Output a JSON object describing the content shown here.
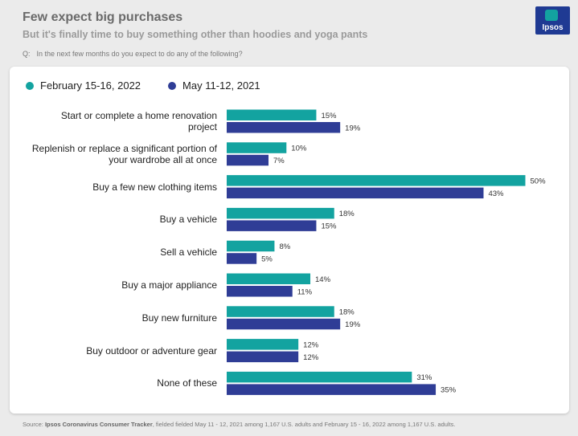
{
  "header": {
    "title": "Few expect big purchases",
    "subtitle": "But it's finally time to buy something other than hoodies and yoga pants",
    "question_label": "Q:",
    "question_text": "In the next few months do you expect to do any of the following?"
  },
  "logo": {
    "text": "Ipsos",
    "icon": "ipsos-logo-icon"
  },
  "colors": {
    "series1": "#13a3a0",
    "series2": "#2f3d96"
  },
  "chart_data": {
    "type": "bar",
    "orientation": "horizontal",
    "title": "Few expect big purchases",
    "categories": [
      "Start or complete a home renovation project",
      "Replenish or replace a significant portion of your wardrobe all at once",
      "Buy a few new clothing items",
      "Buy a vehicle",
      "Sell a vehicle",
      "Buy a major appliance",
      "Buy new furniture",
      "Buy outdoor or adventure gear",
      "None of these"
    ],
    "category_lines": [
      [
        "Start or complete a home renovation",
        "project"
      ],
      [
        "Replenish or replace a significant portion of",
        "your wardrobe all at once"
      ],
      [
        "Buy a few new clothing items"
      ],
      [
        "Buy a vehicle"
      ],
      [
        "Sell a vehicle"
      ],
      [
        "Buy a major appliance"
      ],
      [
        "Buy new furniture"
      ],
      [
        "Buy outdoor or adventure gear"
      ],
      [
        "None of these"
      ]
    ],
    "series": [
      {
        "name": "February 15-16, 2022",
        "values": [
          15,
          10,
          50,
          18,
          8,
          14,
          18,
          12,
          31
        ]
      },
      {
        "name": "May 11-12, 2021",
        "values": [
          19,
          7,
          43,
          15,
          5,
          11,
          19,
          12,
          35
        ]
      }
    ],
    "value_suffix": "%",
    "xlim": [
      0,
      50
    ],
    "legend": "top-left",
    "grid": false,
    "xlabel": "",
    "ylabel": ""
  },
  "footer": {
    "source_label": "Source:",
    "source_bold": "Ipsos Coronavirus Consumer Tracker",
    "source_rest": ", fielded fielded May 11 - 12, 2021 among 1,167 U.S. adults and February 15 - 16, 2022 among 1,167 U.S. adults."
  }
}
